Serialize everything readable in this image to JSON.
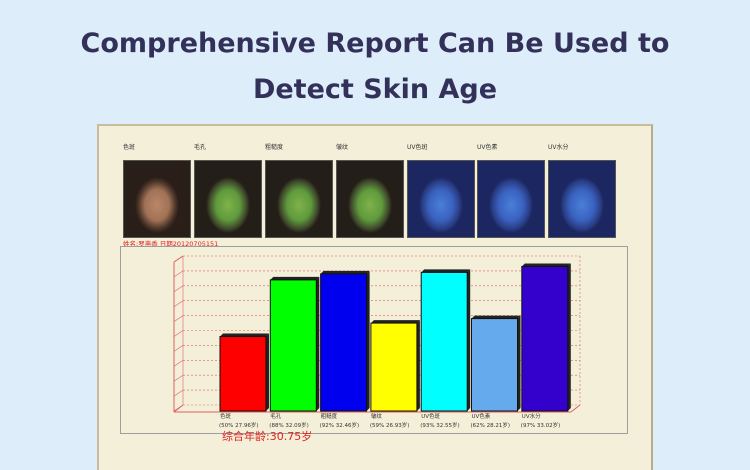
{
  "headline": {
    "line1": "Comprehensive Report Can Be Used to",
    "line2": "Detect Skin Age"
  },
  "thumbnails": [
    {
      "label": "色斑",
      "tint": "none"
    },
    {
      "label": "毛孔",
      "tint": "green"
    },
    {
      "label": "粗糙度",
      "tint": "green"
    },
    {
      "label": "皱纹",
      "tint": "green"
    },
    {
      "label": "UV色斑",
      "tint": "blue"
    },
    {
      "label": "UV色素",
      "tint": "blue"
    },
    {
      "label": "UV水分",
      "tint": "blue"
    }
  ],
  "meta_text": "姓名:罗燕香 日期20120705151",
  "score_text": "综合年龄:30.75岁",
  "colors": {
    "grid": "#e06060",
    "bar_outline": "#111111"
  },
  "chart_data": {
    "type": "bar",
    "categories": [
      "色斑",
      "毛孔",
      "粗糙度",
      "皱纹",
      "UV色斑",
      "UV色素",
      "UV水分"
    ],
    "subcategories": [
      "(50% 27.96岁)",
      "(88% 32.09岁)",
      "(92% 32.46岁)",
      "(59% 26.93岁)",
      "(93% 32.55岁)",
      "(62% 28.21岁)",
      "(97% 33.02岁)"
    ],
    "values": [
      50,
      88,
      92,
      59,
      93,
      62,
      97
    ],
    "colors": [
      "#ff0000",
      "#00ff00",
      "#0000ee",
      "#ffff00",
      "#00ffff",
      "#66aaee",
      "#3300cc"
    ],
    "ylim": [
      0,
      100
    ],
    "grid": true
  }
}
